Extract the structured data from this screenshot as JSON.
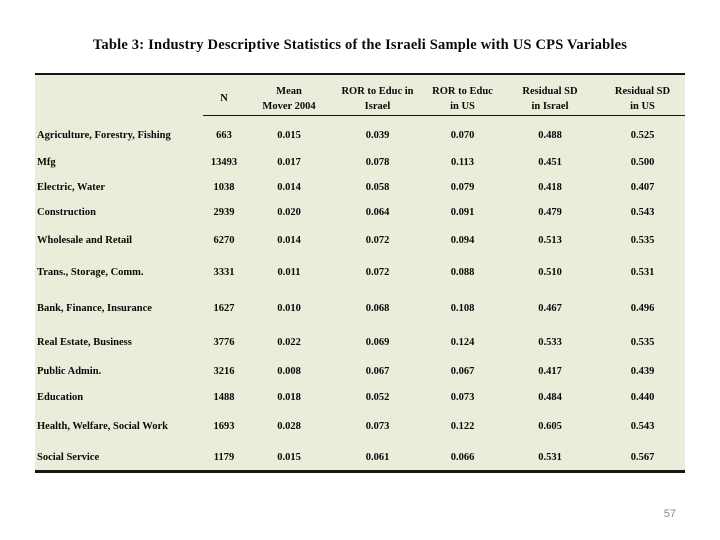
{
  "slide": {
    "title": "Table 3: Industry Descriptive Statistics of the Israeli Sample with US CPS Variables",
    "page_number": "57"
  },
  "colors": {
    "table_background": "#e9eedb",
    "rule_color": "#151515",
    "page_number_gray": "#8a8a8a"
  },
  "table": {
    "headers": [
      {
        "line1": "N",
        "line2": ""
      },
      {
        "line1": "Mean",
        "line2": "Mover 2004"
      },
      {
        "line1": "ROR to Educ in",
        "line2": "Israel"
      },
      {
        "line1": "ROR to Educ",
        "line2": "in US"
      },
      {
        "line1": "Residual SD",
        "line2": "in  Israel"
      },
      {
        "line1": "Residual SD",
        "line2": "in US"
      }
    ],
    "rows": [
      {
        "industry": "Agriculture, Forestry, Fishing",
        "values": [
          "663",
          "0.015",
          "0.039",
          "0.070",
          "0.488",
          "0.525"
        ]
      },
      {
        "industry": "Mfg",
        "values": [
          "13493",
          "0.017",
          "0.078",
          "0.113",
          "0.451",
          "0.500"
        ]
      },
      {
        "industry": "Electric, Water",
        "values": [
          "1038",
          "0.014",
          "0.058",
          "0.079",
          "0.418",
          "0.407"
        ]
      },
      {
        "industry": "Construction",
        "values": [
          "2939",
          "0.020",
          "0.064",
          "0.091",
          "0.479",
          "0.543"
        ]
      },
      {
        "industry": "Wholesale and Retail",
        "values": [
          "6270",
          "0.014",
          "0.072",
          "0.094",
          "0.513",
          "0.535"
        ]
      },
      {
        "industry": "Trans., Storage, Comm.",
        "values": [
          "3331",
          "0.011",
          "0.072",
          "0.088",
          "0.510",
          "0.531"
        ]
      },
      {
        "industry": "Bank, Finance, Insurance",
        "values": [
          "1627",
          "0.010",
          "0.068",
          "0.108",
          "0.467",
          "0.496"
        ]
      },
      {
        "industry": "Real Estate, Business",
        "values": [
          "3776",
          "0.022",
          "0.069",
          "0.124",
          "0.533",
          "0.535"
        ]
      },
      {
        "industry": "Public Admin.",
        "values": [
          "3216",
          "0.008",
          "0.067",
          "0.067",
          "0.417",
          "0.439"
        ]
      },
      {
        "industry": "Education",
        "values": [
          "1488",
          "0.018",
          "0.052",
          "0.073",
          "0.484",
          "0.440"
        ]
      },
      {
        "industry": "Health, Welfare, Social Work",
        "values": [
          "1693",
          "0.028",
          "0.073",
          "0.122",
          "0.605",
          "0.543"
        ]
      },
      {
        "industry": "Social Service",
        "values": [
          "1179",
          "0.015",
          "0.061",
          "0.066",
          "0.531",
          "0.567"
        ]
      }
    ]
  }
}
